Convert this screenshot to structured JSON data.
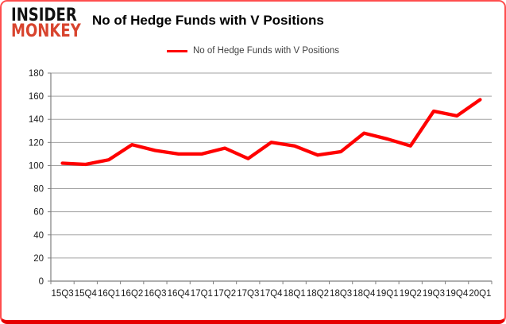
{
  "logo": {
    "line1": "INSIDER",
    "line2": "MONKEY"
  },
  "header": {
    "title": "No of Hedge Funds with V Positions"
  },
  "legend": {
    "label": "No of Hedge Funds with V Positions",
    "line_color": "#ff0000"
  },
  "chart_data": {
    "type": "line",
    "title": "No of Hedge Funds with V Positions",
    "categories": [
      "15Q3",
      "15Q4",
      "16Q1",
      "16Q2",
      "16Q3",
      "16Q4",
      "17Q1",
      "17Q2",
      "17Q3",
      "17Q4",
      "18Q1",
      "18Q2",
      "18Q3",
      "18Q4",
      "19Q1",
      "19Q2",
      "19Q3",
      "19Q4",
      "20Q1"
    ],
    "series": [
      {
        "name": "No of Hedge Funds with V Positions",
        "color": "#ff0000",
        "values": [
          102,
          101,
          105,
          118,
          113,
          110,
          110,
          115,
          106,
          120,
          117,
          109,
          112,
          128,
          123,
          117,
          147,
          143,
          157
        ]
      }
    ],
    "xlabel": "",
    "ylabel": "",
    "ylim": [
      0,
      180
    ],
    "yticks": [
      0,
      20,
      40,
      60,
      80,
      100,
      120,
      140,
      160,
      180
    ],
    "grid": "horizontal",
    "legend_position": "top",
    "gridline_color": "#a3a3a3",
    "axis_color": "#7f7f7f",
    "tick_label_color": "#1a1a1a"
  }
}
